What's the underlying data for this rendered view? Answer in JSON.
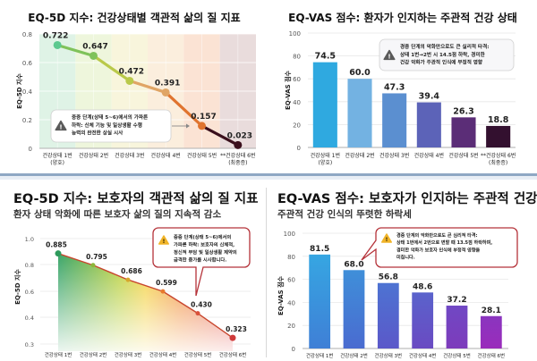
{
  "chart_data": [
    {
      "id": "eq5d_patient",
      "type": "line",
      "title": "EQ-5D 지수: 건강상태별 객관적 삶의 질 지표",
      "ylabel": "EQ-5D 지수",
      "xlabel": "",
      "ylim": [
        0,
        0.8
      ],
      "yticks": [
        "0",
        "0.2",
        "0.4",
        "0.6",
        "0.8"
      ],
      "ytick_values": [
        0,
        0.2,
        0.4,
        0.6,
        0.8
      ],
      "grid": true,
      "categories": [
        [
          "건강상태 1번",
          "(양호)"
        ],
        [
          "건강상태 2번"
        ],
        [
          "건강상태 3번"
        ],
        [
          "건강상태 4번"
        ],
        [
          "건강상태 5번"
        ],
        [
          "**건강상태 6번",
          "(최중증)"
        ]
      ],
      "values": [
        0.722,
        0.647,
        0.472,
        0.391,
        0.157,
        0.023
      ],
      "value_labels": [
        "0.722",
        "0.647",
        "0.472",
        "0.391",
        "0.157",
        "0.023"
      ],
      "point_colors": [
        "#5cc98f",
        "#7fc25a",
        "#b9c94a",
        "#e0a565",
        "#e0742f",
        "#3a0f1c"
      ],
      "band_colors": [
        "#dff3e6",
        "#eef6dc",
        "#f8f5dc",
        "#fbeedd",
        "#fbe3d4",
        "#e9dcdc"
      ],
      "annotation": {
        "icon": "warning-icon",
        "lines": [
          "중증 단계(상태 5~6)에서의 가파른",
          "하락: 신체 기능 및 일상생활 수행",
          "능력의 완전한 상실 시사"
        ]
      }
    },
    {
      "id": "eqvas_patient",
      "type": "bar",
      "title": "EQ-VAS 점수: 환자가 인지하는 주관적 건강 상태",
      "ylabel": "EQ-VAS 점수",
      "xlabel": "",
      "ylim": [
        0,
        100
      ],
      "yticks": [
        "0",
        "20",
        "40",
        "60",
        "80",
        "100"
      ],
      "ytick_values": [
        0,
        20,
        40,
        60,
        80,
        100
      ],
      "grid": true,
      "categories": [
        [
          "건강상태 1번",
          "(양호)"
        ],
        [
          "건강상태 2번"
        ],
        [
          "건강상태 3번"
        ],
        [
          "건강상태 4번"
        ],
        [
          "건강상태 5번"
        ],
        [
          "**건강상태 6번",
          "(최중증)"
        ]
      ],
      "values": [
        74.5,
        60.0,
        47.3,
        39.4,
        26.3,
        18.8
      ],
      "value_labels": [
        "74.5",
        "60.0",
        "47.3",
        "39.4",
        "26.3",
        "18.8"
      ],
      "bar_colors": [
        "#2fa9e0",
        "#73b2e2",
        "#5b8fd0",
        "#5c63b8",
        "#5b2d77",
        "#33102f"
      ],
      "annotation": {
        "icon": "warning-icon",
        "lines": [
          "경증 단계의 악화만으로도 큰 실리적 타격:",
          "상태 1번→2번 시 14.5점 하락, 경미한",
          "건강 악화가 주관적 인식에 부정적 영향"
        ]
      }
    },
    {
      "id": "eq5d_caregiver",
      "type": "area",
      "title": "EQ-5D 지수: 보호자의 객관적 삶의 질 지표",
      "subtitle": "환자 상태 악화에 따른 보호자 삶의 질의 지속적 감소",
      "ylabel": "EQ-5D 지수",
      "xlabel": "",
      "ylim": [
        0.25,
        1.0
      ],
      "yticks": [
        "0.3",
        "0.4",
        "0.6",
        "0.8",
        "1.0"
      ],
      "ytick_values": [
        0.3,
        0.4,
        0.6,
        0.8,
        1.0
      ],
      "grid": true,
      "categories": [
        [
          "건강상태 1번"
        ],
        [
          "건강상태 2번"
        ],
        [
          "건강상태 3번"
        ],
        [
          "건강상태 4번"
        ],
        [
          "건강상태 5번"
        ],
        [
          "건강상태 6번"
        ]
      ],
      "values": [
        0.885,
        0.795,
        0.686,
        0.599,
        0.43,
        0.323
      ],
      "value_labels": [
        "0.885",
        "0.795",
        "0.686",
        "0.599",
        "0.430",
        "0.323"
      ],
      "annotation": {
        "icon": "warning-icon",
        "lines": [
          "중증 단계(상태 5~6)에서의",
          "가파른 하락: 보호자의 신체적,",
          "정신적 부담 및 일상생활 제약의",
          "급격한 증가를 시사합니다."
        ]
      }
    },
    {
      "id": "eqvas_caregiver",
      "type": "bar",
      "title": "EQ-VAS 점수: 보호자가 인지하는 주관적 건강 상태",
      "subtitle": "주관적 건강 인식의 뚜렷한 하락세",
      "ylabel": "EQ-VAS 점수",
      "xlabel": "",
      "ylim": [
        0,
        100
      ],
      "yticks": [
        "0",
        "20",
        "40",
        "60",
        "80",
        "100"
      ],
      "ytick_values": [
        0,
        20,
        40,
        60,
        80,
        100
      ],
      "grid": true,
      "categories": [
        [
          "건강상태 1번"
        ],
        [
          "건강상태 2번"
        ],
        [
          "건강상태 3번"
        ],
        [
          "건강상태 4번"
        ],
        [
          "건강상태 5번"
        ],
        [
          "건강상태 6번"
        ]
      ],
      "values": [
        81.5,
        68.0,
        56.8,
        48.6,
        37.2,
        28.1
      ],
      "value_labels": [
        "81.5",
        "68.0",
        "56.8",
        "48.6",
        "37.2",
        "28.1"
      ],
      "annotation": {
        "icon": "warning-icon",
        "lines": [
          "경증 단계의 악화만으로도 큰 심리적 타격:",
          "상태 1번에서 2번으로 변할 때 13.5점 하락하며,",
          "경미한 악화가 보호자 인식에 부정적 영향을",
          "미칩니다."
        ]
      }
    }
  ]
}
